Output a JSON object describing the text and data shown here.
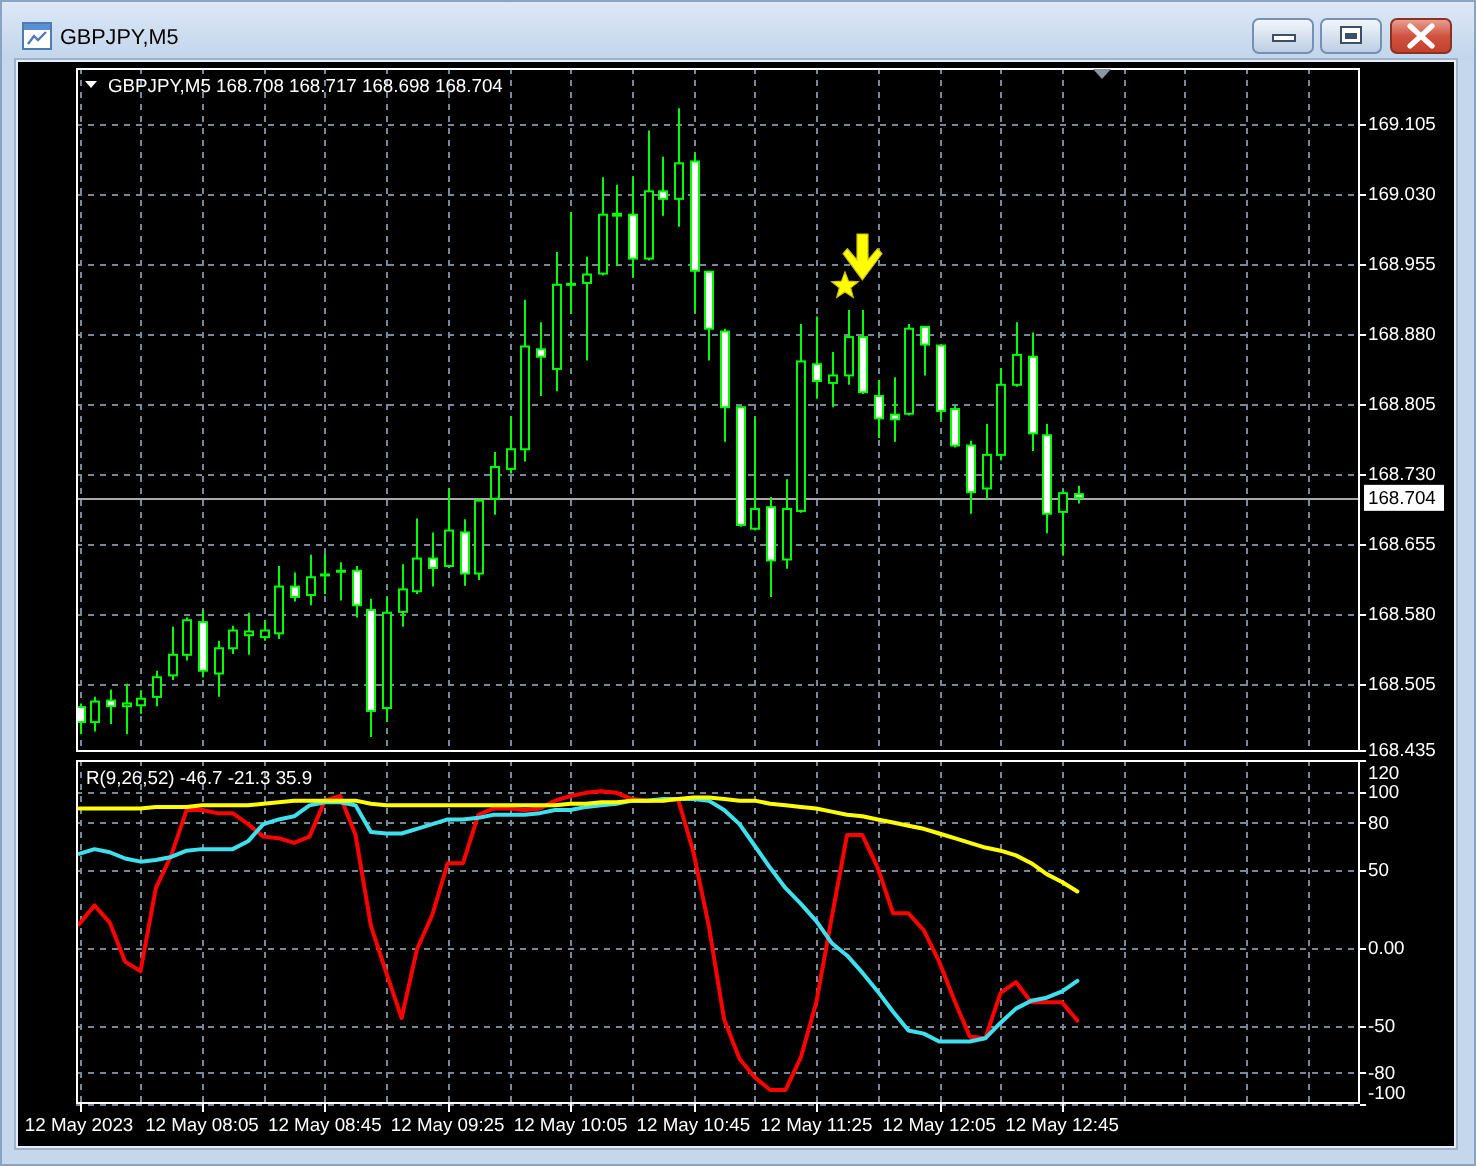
{
  "chart_data": [
    {
      "type": "candlestick",
      "title": "GBPJPY,M5",
      "subtitle": "GBPJPY,M5 168.708 168.717 168.698 168.704",
      "x": [
        "2023-05-12T07:25",
        "2023-05-12T07:30",
        "2023-05-12T07:35",
        "2023-05-12T07:40",
        "2023-05-12T07:45",
        "2023-05-12T07:50",
        "2023-05-12T07:55",
        "2023-05-12T08:00",
        "2023-05-12T08:05",
        "2023-05-12T08:10",
        "2023-05-12T08:15",
        "2023-05-12T08:20",
        "2023-05-12T08:25",
        "2023-05-12T08:30",
        "2023-05-12T08:35",
        "2023-05-12T08:40",
        "2023-05-12T08:45",
        "2023-05-12T08:50",
        "2023-05-12T08:55",
        "2023-05-12T09:00",
        "2023-05-12T09:05",
        "2023-05-12T09:10",
        "2023-05-12T09:15",
        "2023-05-12T09:20",
        "2023-05-12T09:25",
        "2023-05-12T09:30",
        "2023-05-12T09:35",
        "2023-05-12T09:40",
        "2023-05-12T09:45",
        "2023-05-12T09:50",
        "2023-05-12T09:55",
        "2023-05-12T10:00",
        "2023-05-12T10:05",
        "2023-05-12T10:10",
        "2023-05-12T10:15",
        "2023-05-12T10:20",
        "2023-05-12T10:25",
        "2023-05-12T10:30",
        "2023-05-12T10:35",
        "2023-05-12T10:40",
        "2023-05-12T10:45",
        "2023-05-12T10:50",
        "2023-05-12T10:55",
        "2023-05-12T11:00",
        "2023-05-12T11:05",
        "2023-05-12T11:10",
        "2023-05-12T11:15",
        "2023-05-12T11:20",
        "2023-05-12T11:25",
        "2023-05-12T11:30",
        "2023-05-12T11:35",
        "2023-05-12T11:40",
        "2023-05-12T11:45",
        "2023-05-12T11:50",
        "2023-05-12T11:55",
        "2023-05-12T12:00",
        "2023-05-12T12:05",
        "2023-05-12T12:10",
        "2023-05-12T12:15",
        "2023-05-12T12:20",
        "2023-05-12T12:25",
        "2023-05-12T12:30",
        "2023-05-12T12:35",
        "2023-05-12T12:40",
        "2023-05-12T12:45",
        "2023-05-12T12:50"
      ],
      "ohlc": [
        [
          168.48,
          168.484,
          168.451,
          168.464
        ],
        [
          168.464,
          168.491,
          168.454,
          168.486
        ],
        [
          168.487,
          168.499,
          168.462,
          168.481
        ],
        [
          168.481,
          168.505,
          168.451,
          168.484
        ],
        [
          168.482,
          168.498,
          168.473,
          168.489
        ],
        [
          168.491,
          168.519,
          168.481,
          168.512
        ],
        [
          168.514,
          168.566,
          168.509,
          168.536
        ],
        [
          168.536,
          168.576,
          168.53,
          168.573
        ],
        [
          168.571,
          168.584,
          168.512,
          168.519
        ],
        [
          168.516,
          168.551,
          168.491,
          168.543
        ],
        [
          168.543,
          168.567,
          168.537,
          168.562
        ],
        [
          168.557,
          168.581,
          168.536,
          168.561
        ],
        [
          168.555,
          168.573,
          168.551,
          168.562
        ],
        [
          168.559,
          168.631,
          168.553,
          168.609
        ],
        [
          168.609,
          168.624,
          168.593,
          168.598
        ],
        [
          168.6,
          168.643,
          168.589,
          168.619
        ],
        [
          168.621,
          168.644,
          168.601,
          168.622
        ],
        [
          168.625,
          168.635,
          168.594,
          168.626
        ],
        [
          168.626,
          168.631,
          168.576,
          168.589
        ],
        [
          168.584,
          168.596,
          168.448,
          168.476
        ],
        [
          168.479,
          168.598,
          168.464,
          168.581
        ],
        [
          168.582,
          168.633,
          168.566,
          168.606
        ],
        [
          168.604,
          168.682,
          168.601,
          168.639
        ],
        [
          168.639,
          168.667,
          168.609,
          168.629
        ],
        [
          168.631,
          168.714,
          168.629,
          168.669
        ],
        [
          168.667,
          168.681,
          168.61,
          168.623
        ],
        [
          168.623,
          168.703,
          168.616,
          168.701
        ],
        [
          168.703,
          168.753,
          168.686,
          168.737
        ],
        [
          168.735,
          168.791,
          168.73,
          168.756
        ],
        [
          168.756,
          168.916,
          168.743,
          168.866
        ],
        [
          168.863,
          168.892,
          168.813,
          168.855
        ],
        [
          168.842,
          168.967,
          168.818,
          168.932
        ],
        [
          168.932,
          169.01,
          168.901,
          168.933
        ],
        [
          168.934,
          168.962,
          168.851,
          168.943
        ],
        [
          168.944,
          169.047,
          168.942,
          169.007
        ],
        [
          169.006,
          169.039,
          168.952,
          169.008
        ],
        [
          169.007,
          169.047,
          168.94,
          168.96
        ],
        [
          168.96,
          169.097,
          168.958,
          169.032
        ],
        [
          169.032,
          169.069,
          169.006,
          169.024
        ],
        [
          169.024,
          169.121,
          168.994,
          169.062
        ],
        [
          169.064,
          169.073,
          168.902,
          168.947
        ],
        [
          168.946,
          168.947,
          168.851,
          168.885
        ],
        [
          168.882,
          168.885,
          168.764,
          168.801
        ],
        [
          168.801,
          168.801,
          168.673,
          168.675
        ],
        [
          168.671,
          168.79,
          168.669,
          168.692
        ],
        [
          168.694,
          168.705,
          168.598,
          168.637
        ],
        [
          168.638,
          168.724,
          168.628,
          168.692
        ],
        [
          168.69,
          168.89,
          168.688,
          168.85
        ],
        [
          168.847,
          168.898,
          168.81,
          168.829
        ],
        [
          168.827,
          168.86,
          168.801,
          168.835
        ],
        [
          168.835,
          168.905,
          168.825,
          168.876
        ],
        [
          168.876,
          168.905,
          168.815,
          168.817
        ],
        [
          168.813,
          168.83,
          168.768,
          168.789
        ],
        [
          168.793,
          168.833,
          168.764,
          168.788
        ],
        [
          168.794,
          168.89,
          168.792,
          168.885
        ],
        [
          168.887,
          168.888,
          168.835,
          168.868
        ],
        [
          168.867,
          168.868,
          168.787,
          168.797
        ],
        [
          168.799,
          168.803,
          168.758,
          168.76
        ],
        [
          168.76,
          168.765,
          168.687,
          168.71
        ],
        [
          168.714,
          168.783,
          168.703,
          168.75
        ],
        [
          168.75,
          168.843,
          168.744,
          168.825
        ],
        [
          168.825,
          168.892,
          168.823,
          168.857
        ],
        [
          168.855,
          168.881,
          168.754,
          168.773
        ],
        [
          168.771,
          168.783,
          168.666,
          168.687
        ],
        [
          168.689,
          168.712,
          168.642,
          168.709
        ],
        [
          168.708,
          168.717,
          168.698,
          168.704
        ]
      ],
      "xlim": [
        "2023-05-12T07:24",
        "2023-05-12T14:22"
      ],
      "xticks": [
        "2023-05-12T07:25",
        "2023-05-12T07:45",
        "2023-05-12T08:05",
        "2023-05-12T08:25",
        "2023-05-12T08:45",
        "2023-05-12T09:05",
        "2023-05-12T09:25",
        "2023-05-12T09:45",
        "2023-05-12T10:05",
        "2023-05-12T10:25",
        "2023-05-12T10:45",
        "2023-05-12T11:05",
        "2023-05-12T11:25",
        "2023-05-12T11:45",
        "2023-05-12T12:05",
        "2023-05-12T12:25",
        "2023-05-12T12:45",
        "2023-05-12T13:05",
        "2023-05-12T13:25",
        "2023-05-12T13:45",
        "2023-05-12T14:05"
      ],
      "ylim": [
        168.432,
        169.164
      ],
      "yticks": [
        168.435,
        168.505,
        {
          "value": 168.58,
          "label": "168.580"
        },
        168.655,
        {
          "value": 168.73,
          "label": "168.730"
        },
        168.805,
        {
          "value": 168.88,
          "label": "168.880"
        },
        168.955,
        {
          "value": 169.03,
          "label": "169.030"
        },
        169.105
      ],
      "grid": true,
      "tick_labels": "y",
      "ref_lines": [
        {
          "axis": "y",
          "value": 168.704,
          "label": "168.704",
          "color": "#a9a9a9"
        }
      ]
    },
    {
      "type": "line",
      "title": "R(9,26,52) -46.7 -21.3 35.9",
      "x": [
        "2023-05-12T07:25",
        "2023-05-12T07:30",
        "2023-05-12T07:35",
        "2023-05-12T07:40",
        "2023-05-12T07:45",
        "2023-05-12T07:50",
        "2023-05-12T07:55",
        "2023-05-12T08:00",
        "2023-05-12T08:05",
        "2023-05-12T08:10",
        "2023-05-12T08:15",
        "2023-05-12T08:20",
        "2023-05-12T08:25",
        "2023-05-12T08:30",
        "2023-05-12T08:35",
        "2023-05-12T08:40",
        "2023-05-12T08:45",
        "2023-05-12T08:50",
        "2023-05-12T08:55",
        "2023-05-12T09:00",
        "2023-05-12T09:05",
        "2023-05-12T09:10",
        "2023-05-12T09:15",
        "2023-05-12T09:20",
        "2023-05-12T09:25",
        "2023-05-12T09:30",
        "2023-05-12T09:35",
        "2023-05-12T09:40",
        "2023-05-12T09:45",
        "2023-05-12T09:50",
        "2023-05-12T09:55",
        "2023-05-12T10:00",
        "2023-05-12T10:05",
        "2023-05-12T10:10",
        "2023-05-12T10:15",
        "2023-05-12T10:20",
        "2023-05-12T10:25",
        "2023-05-12T10:30",
        "2023-05-12T10:35",
        "2023-05-12T10:40",
        "2023-05-12T10:45",
        "2023-05-12T10:50",
        "2023-05-12T10:55",
        "2023-05-12T11:00",
        "2023-05-12T11:05",
        "2023-05-12T11:10",
        "2023-05-12T11:15",
        "2023-05-12T11:20",
        "2023-05-12T11:25",
        "2023-05-12T11:30",
        "2023-05-12T11:35",
        "2023-05-12T11:40",
        "2023-05-12T11:45",
        "2023-05-12T11:50",
        "2023-05-12T11:55",
        "2023-05-12T12:00",
        "2023-05-12T12:05",
        "2023-05-12T12:10",
        "2023-05-12T12:15",
        "2023-05-12T12:20",
        "2023-05-12T12:25",
        "2023-05-12T12:30",
        "2023-05-12T12:35",
        "2023-05-12T12:40",
        "2023-05-12T12:45",
        "2023-05-12T12:50"
      ],
      "series": [
        {
          "color": "#ff0000",
          "values": [
            15,
            27,
            16,
            -9,
            -15,
            38,
            59,
            88,
            88,
            86,
            86,
            79,
            71,
            70,
            67,
            71,
            94,
            97,
            72,
            14,
            -16,
            -45,
            -1,
            21,
            54,
            54,
            85,
            89,
            89,
            88,
            89,
            94,
            97,
            99,
            100,
            99,
            95,
            94,
            94,
            95,
            61,
            14,
            -46,
            -71,
            -83,
            -91,
            -91,
            -70,
            -35,
            19,
            72,
            72,
            51,
            22,
            22,
            11,
            -9,
            -34,
            -57,
            -58,
            -29,
            -22,
            -35,
            -35,
            -35,
            -46.7
          ]
        },
        {
          "color": "#3ee0ee",
          "values": [
            60,
            63,
            61,
            57,
            55,
            56,
            58,
            62,
            63,
            63,
            63,
            68,
            79,
            82,
            84,
            91,
            93,
            93,
            91,
            74,
            73,
            73,
            76,
            79,
            82,
            82,
            83,
            85,
            85,
            85,
            86,
            88,
            88,
            90,
            91,
            92,
            94,
            94,
            95,
            95,
            95,
            94,
            88,
            79,
            65,
            51,
            38,
            28,
            17,
            3,
            -5,
            -16,
            -28,
            -41,
            -53,
            -55,
            -60,
            -60,
            -60,
            -58,
            -48,
            -39,
            -34,
            -32,
            -28,
            -21.3
          ]
        },
        {
          "color": "#ffff00",
          "values": [
            89,
            89,
            89,
            89,
            89,
            90,
            90,
            90,
            91,
            91,
            91,
            91,
            92,
            93,
            94,
            94,
            94,
            94,
            94,
            92,
            91,
            91,
            91,
            91,
            91,
            91,
            91,
            91,
            91,
            91,
            91,
            91,
            92,
            92,
            93,
            93,
            94,
            94,
            94,
            95,
            96,
            96,
            95,
            94,
            94,
            92,
            91,
            90,
            89,
            87,
            85,
            84,
            82,
            80,
            78,
            76,
            73,
            70,
            67,
            64,
            62,
            59,
            54,
            47,
            42,
            35.9
          ]
        }
      ],
      "xlim": [
        "2023-05-12T07:24",
        "2023-05-12T14:22"
      ],
      "xticks": [
        {
          "value": "2023-05-12T07:25",
          "label": "12 May 2023"
        },
        {
          "value": "2023-05-12T07:45",
          "label": null
        },
        {
          "value": "2023-05-12T08:05",
          "label": "12 May 08:05"
        },
        {
          "value": "2023-05-12T08:25",
          "label": null
        },
        {
          "value": "2023-05-12T08:45",
          "label": "12 May 08:45"
        },
        {
          "value": "2023-05-12T09:05",
          "label": null
        },
        {
          "value": "2023-05-12T09:25",
          "label": "12 May 09:25"
        },
        {
          "value": "2023-05-12T09:45",
          "label": null
        },
        {
          "value": "2023-05-12T10:05",
          "label": "12 May 10:05"
        },
        {
          "value": "2023-05-12T10:25",
          "label": null
        },
        {
          "value": "2023-05-12T10:45",
          "label": "12 May 10:45"
        },
        {
          "value": "2023-05-12T11:05",
          "label": null
        },
        {
          "value": "2023-05-12T11:25",
          "label": "12 May 11:25"
        },
        {
          "value": "2023-05-12T11:45",
          "label": null
        },
        {
          "value": "2023-05-12T12:05",
          "label": "12 May 12:05"
        },
        {
          "value": "2023-05-12T12:25",
          "label": null
        },
        {
          "value": "2023-05-12T12:45",
          "label": "12 May 12:45"
        },
        {
          "value": "2023-05-12T13:05",
          "label": null
        },
        {
          "value": "2023-05-12T13:25",
          "label": null
        },
        {
          "value": "2023-05-12T13:45",
          "label": null
        },
        {
          "value": "2023-05-12T14:05",
          "label": null
        }
      ],
      "ylim": [
        -100,
        120
      ],
      "yticks": [
        -100,
        -80,
        -50,
        {
          "value": 0,
          "label": "0.00"
        },
        50,
        80,
        100,
        120
      ],
      "grid": true
    }
  ]
}
